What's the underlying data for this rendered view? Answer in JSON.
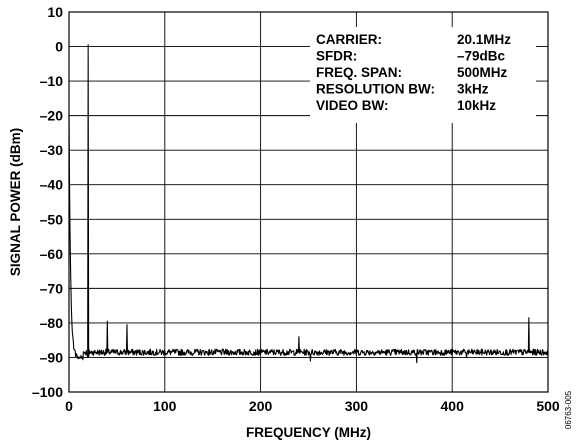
{
  "chart_data": {
    "type": "line",
    "title": "",
    "xlabel": "FREQUENCY (MHz)",
    "ylabel": "SIGNAL POWER (dBm)",
    "xlim": [
      0,
      500
    ],
    "ylim": [
      -100,
      10
    ],
    "x_ticks": [
      0,
      100,
      200,
      300,
      400,
      500
    ],
    "x_tick_labels": [
      "0",
      "100",
      "200",
      "300",
      "400",
      "500"
    ],
    "y_ticks": [
      10,
      0,
      -10,
      -20,
      -30,
      -40,
      -50,
      -60,
      -70,
      -80,
      -90,
      -100
    ],
    "y_tick_labels": [
      "10",
      "0",
      "–10",
      "–20",
      "–30",
      "–40",
      "–50",
      "–60",
      "–70",
      "–80",
      "–90",
      "–100"
    ],
    "grid": true,
    "noise_floor_dbm": -88.5,
    "series": [
      {
        "peaks": [
          {
            "x": 0,
            "y": -20
          },
          {
            "x": 20.1,
            "y": 0.5
          },
          {
            "x": 40.2,
            "y": -79.5
          },
          {
            "x": 60.3,
            "y": -80.5
          },
          {
            "x": 240,
            "y": -84
          },
          {
            "x": 480,
            "y": -78.5
          }
        ],
        "dips": [
          {
            "x": 252,
            "y": -91
          },
          {
            "x": 363,
            "y": -91.5
          },
          {
            "x": 415,
            "y": -90
          }
        ]
      }
    ],
    "annotations": [
      {
        "label": "CARRIER:",
        "value": "20.1MHz"
      },
      {
        "label": "SFDR:",
        "value": "–79dBc"
      },
      {
        "label": "FREQ. SPAN:",
        "value": "500MHz"
      },
      {
        "label": "RESOLUTION BW:",
        "value": "3kHz"
      },
      {
        "label": "VIDEO BW:",
        "value": "10kHz"
      }
    ]
  },
  "figure_id": "06763-005"
}
